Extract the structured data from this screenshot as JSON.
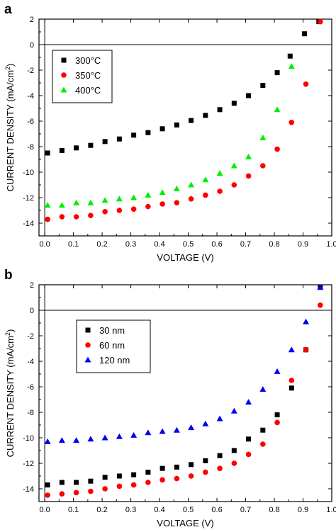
{
  "chart_data": [
    {
      "type": "scatter",
      "panel_label": "a",
      "xlabel": "VOLTAGE (V)",
      "ylabel": "CURRENT DENSITY (mA/cm",
      "ylabel_sup": "2",
      "ylabel_end": ")",
      "xlim": [
        -0.02,
        1.0
      ],
      "ylim": [
        -15,
        2
      ],
      "xticks": [
        0.0,
        0.1,
        0.2,
        0.3,
        0.4,
        0.5,
        0.6,
        0.7,
        0.8,
        0.9,
        1.0
      ],
      "xtick_labels": [
        "0.0",
        "0.1",
        "0.2",
        "0.3",
        "0.4",
        "0.5",
        "0.6",
        "0.7",
        "0.8",
        "0.9",
        "1.0"
      ],
      "yticks": [
        2,
        0,
        -2,
        -4,
        -6,
        -8,
        -10,
        -12,
        -14
      ],
      "ytick_labels": [
        "2",
        "0",
        "-2",
        "-4",
        "-6",
        "-8",
        "-10",
        "-12",
        "-14"
      ],
      "zero_line": true,
      "legend_position": "top-left",
      "series": [
        {
          "name": "300°C",
          "marker": "square",
          "color": "#000000",
          "x": [
            0.01,
            0.06,
            0.11,
            0.16,
            0.21,
            0.26,
            0.31,
            0.36,
            0.41,
            0.46,
            0.51,
            0.56,
            0.61,
            0.66,
            0.71,
            0.76,
            0.81,
            0.855,
            0.905,
            0.955
          ],
          "y": [
            -8.5,
            -8.3,
            -8.1,
            -7.9,
            -7.6,
            -7.4,
            -7.1,
            -6.9,
            -6.6,
            -6.3,
            -5.95,
            -5.55,
            -5.1,
            -4.6,
            -4.0,
            -3.2,
            -2.2,
            -0.9,
            0.85,
            1.8
          ]
        },
        {
          "name": "350°C",
          "marker": "circle",
          "color": "#ff0000",
          "x": [
            0.01,
            0.06,
            0.11,
            0.16,
            0.21,
            0.26,
            0.31,
            0.36,
            0.41,
            0.46,
            0.51,
            0.56,
            0.61,
            0.66,
            0.71,
            0.76,
            0.81,
            0.86,
            0.91,
            0.96
          ],
          "y": [
            -13.7,
            -13.5,
            -13.5,
            -13.4,
            -13.1,
            -13.0,
            -12.9,
            -12.7,
            -12.5,
            -12.4,
            -12.1,
            -11.8,
            -11.5,
            -11.0,
            -10.3,
            -9.5,
            -8.2,
            -6.1,
            -3.1,
            1.8
          ]
        },
        {
          "name": "400°C",
          "marker": "triangle",
          "color": "#00ee00",
          "x": [
            0.01,
            0.06,
            0.11,
            0.16,
            0.21,
            0.26,
            0.31,
            0.36,
            0.41,
            0.46,
            0.51,
            0.56,
            0.61,
            0.66,
            0.71,
            0.76,
            0.81,
            0.86
          ],
          "y": [
            -12.6,
            -12.6,
            -12.4,
            -12.4,
            -12.2,
            -12.1,
            -12.0,
            -11.8,
            -11.6,
            -11.3,
            -11.0,
            -10.6,
            -10.1,
            -9.5,
            -8.8,
            -7.3,
            -5.1,
            -1.7
          ]
        }
      ]
    },
    {
      "type": "scatter",
      "panel_label": "b",
      "xlabel": "VOLTAGE (V)",
      "ylabel": "CURRENT DENSITY (mA/cm",
      "ylabel_sup": "2",
      "ylabel_end": ")",
      "xlim": [
        -0.02,
        1.0
      ],
      "ylim": [
        -15,
        2
      ],
      "xticks": [
        0.0,
        0.1,
        0.2,
        0.3,
        0.4,
        0.5,
        0.6,
        0.7,
        0.8,
        0.9,
        1.0
      ],
      "xtick_labels": [
        "0.0",
        "0.1",
        "0.2",
        "0.3",
        "0.4",
        "0.5",
        "0.6",
        "0.7",
        "0.8",
        "0.9",
        "1.0"
      ],
      "yticks": [
        2,
        0,
        -2,
        -4,
        -6,
        -8,
        -10,
        -12,
        -14
      ],
      "ytick_labels": [
        "2",
        "0",
        "-2",
        "-4",
        "-6",
        "-8",
        "-10",
        "-12",
        "-14"
      ],
      "zero_line": true,
      "legend_position": "top-left",
      "series": [
        {
          "name": "30 nm",
          "marker": "square",
          "color": "#000000",
          "x": [
            0.01,
            0.06,
            0.11,
            0.16,
            0.21,
            0.26,
            0.31,
            0.36,
            0.41,
            0.46,
            0.51,
            0.56,
            0.61,
            0.66,
            0.71,
            0.76,
            0.81,
            0.86,
            0.91,
            0.96
          ],
          "y": [
            -13.7,
            -13.5,
            -13.5,
            -13.4,
            -13.1,
            -13.0,
            -12.9,
            -12.7,
            -12.4,
            -12.3,
            -12.1,
            -11.8,
            -11.4,
            -11.0,
            -10.1,
            -9.4,
            -8.2,
            -6.1,
            -3.1,
            1.8
          ]
        },
        {
          "name": "60 nm",
          "marker": "circle",
          "color": "#ff0000",
          "x": [
            0.01,
            0.06,
            0.11,
            0.16,
            0.21,
            0.26,
            0.31,
            0.36,
            0.41,
            0.46,
            0.51,
            0.56,
            0.61,
            0.66,
            0.71,
            0.76,
            0.81,
            0.86,
            0.91,
            0.96
          ],
          "y": [
            -14.5,
            -14.4,
            -14.3,
            -14.2,
            -14.0,
            -13.8,
            -13.7,
            -13.5,
            -13.3,
            -13.2,
            -13.0,
            -12.7,
            -12.4,
            -12.0,
            -11.3,
            -10.5,
            -8.8,
            -5.5,
            -3.1,
            0.4
          ]
        },
        {
          "name": "120 nm",
          "marker": "triangle",
          "color": "#0000ee",
          "x": [
            0.01,
            0.06,
            0.11,
            0.16,
            0.21,
            0.26,
            0.31,
            0.36,
            0.41,
            0.46,
            0.51,
            0.56,
            0.61,
            0.66,
            0.71,
            0.76,
            0.81,
            0.86,
            0.91,
            0.96
          ],
          "y": [
            -10.3,
            -10.2,
            -10.2,
            -10.1,
            -10.0,
            -9.9,
            -9.8,
            -9.6,
            -9.5,
            -9.4,
            -9.2,
            -8.9,
            -8.5,
            -7.9,
            -7.2,
            -6.2,
            -4.8,
            -3.1,
            -0.9,
            1.8
          ]
        }
      ]
    }
  ]
}
